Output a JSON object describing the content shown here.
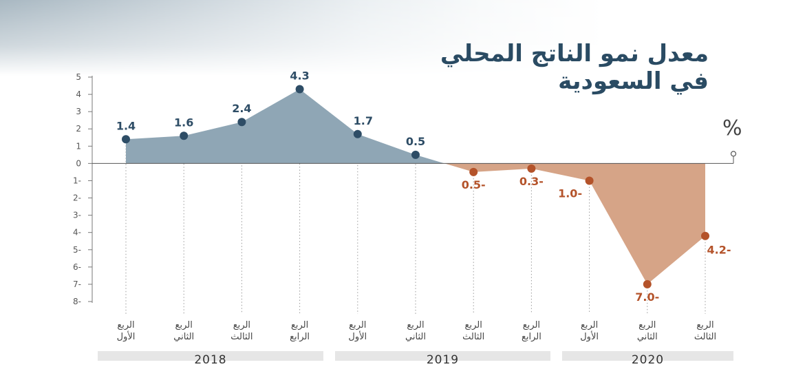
{
  "title": {
    "line1": "معدل نمو الناتج المحلي",
    "line2": "في السعودية"
  },
  "unit": "%",
  "chart_data": {
    "type": "area",
    "title": "معدل نمو الناتج المحلي في السعودية",
    "ylabel": "%",
    "ylim": [
      -8,
      5
    ],
    "yticks": [
      "5",
      "4",
      "3",
      "2",
      "1",
      "0",
      "1-",
      "2-",
      "3-",
      "4-",
      "5-",
      "6-",
      "7-",
      "8-"
    ],
    "x": [
      {
        "quarter": [
          "الربع",
          "الأول"
        ],
        "year": "2018"
      },
      {
        "quarter": [
          "الربع",
          "الثاني"
        ],
        "year": "2018"
      },
      {
        "quarter": [
          "الربع",
          "الثالث"
        ],
        "year": "2018"
      },
      {
        "quarter": [
          "الربع",
          "الرابع"
        ],
        "year": "2018"
      },
      {
        "quarter": [
          "الربع",
          "الأول"
        ],
        "year": "2019"
      },
      {
        "quarter": [
          "الربع",
          "الثاني"
        ],
        "year": "2019"
      },
      {
        "quarter": [
          "الربع",
          "الثالث"
        ],
        "year": "2019"
      },
      {
        "quarter": [
          "الربع",
          "الرابع"
        ],
        "year": "2019"
      },
      {
        "quarter": [
          "الربع",
          "الأول"
        ],
        "year": "2020"
      },
      {
        "quarter": [
          "الربع",
          "الثاني"
        ],
        "year": "2020"
      },
      {
        "quarter": [
          "الربع",
          "الثالث"
        ],
        "year": "2020"
      }
    ],
    "values": [
      1.4,
      1.6,
      2.4,
      4.3,
      1.7,
      0.5,
      -0.5,
      -0.3,
      -1.0,
      -7.0,
      -4.2
    ],
    "data_labels": [
      "1.4",
      "1.6",
      "2.4",
      "4.3",
      "1.7",
      "0.5",
      "0.5-",
      "0.3-",
      "1.0-",
      "7.0-",
      "4.2-"
    ],
    "years": [
      "2018",
      "2019",
      "2020"
    ],
    "colors": {
      "positive_fill": "#8fa6b5",
      "positive_marker": "#2e4d66",
      "positive_label": "#2e4d66",
      "negative_fill": "#d6a487",
      "negative_marker": "#b4532a",
      "negative_label": "#b4532a",
      "year_band": "#e6e6e6"
    }
  }
}
